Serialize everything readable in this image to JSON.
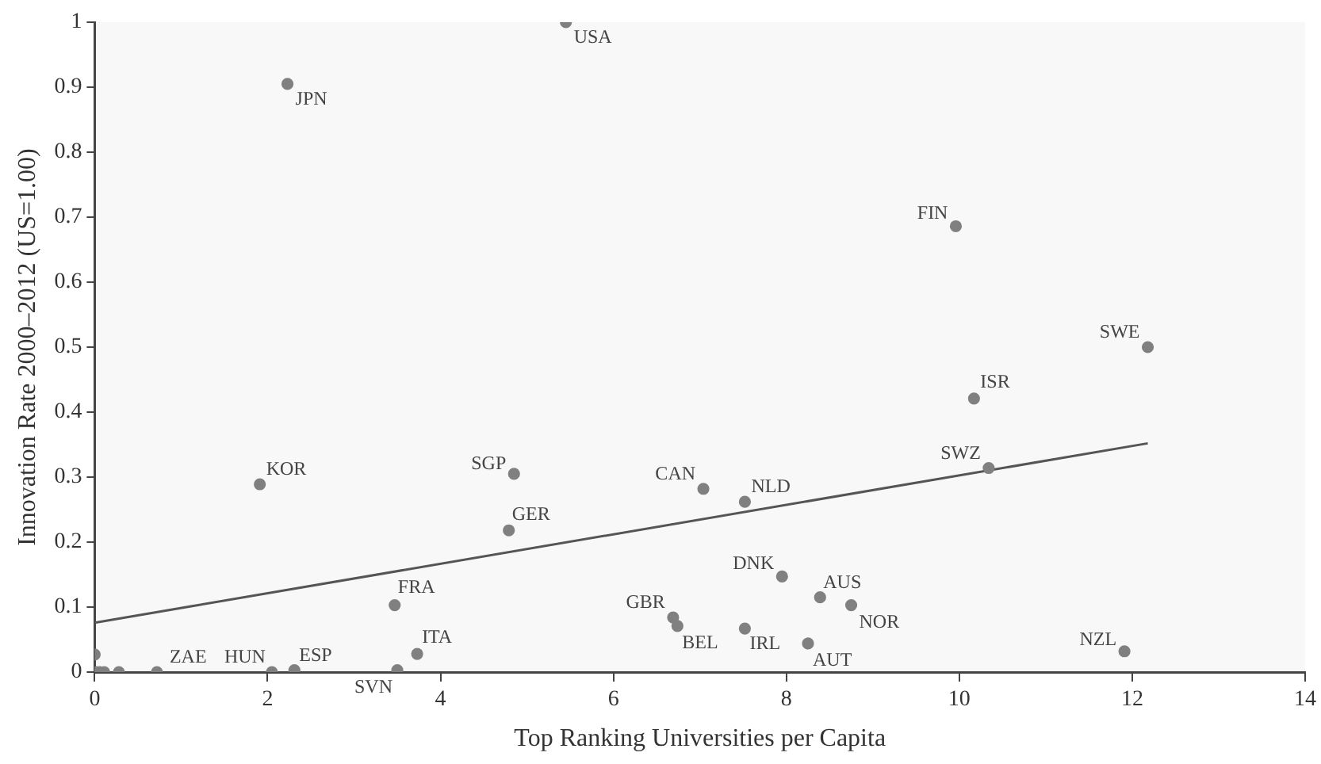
{
  "chart_data": {
    "type": "scatter",
    "xlabel": "Top Ranking Universities per Capita",
    "ylabel": "Innovation Rate 2000–2012 (US=1.00)",
    "xlim": [
      0,
      14
    ],
    "xticks": [
      0,
      2,
      4,
      6,
      8,
      10,
      12,
      14
    ],
    "ylim": [
      0,
      1
    ],
    "yticks": [
      0,
      0.1,
      0.2,
      0.3,
      0.4,
      0.5,
      0.6,
      0.7,
      0.8,
      0.9,
      1
    ],
    "grid": false,
    "legend": false,
    "marker": "circle",
    "series": [
      {
        "color": "#808080",
        "x": [
          5.45,
          2.23,
          9.96,
          12.18,
          10.17,
          10.34,
          1.91,
          4.85,
          4.79,
          7.04,
          7.52,
          3.47,
          7.95,
          8.39,
          8.75,
          6.69,
          6.74,
          7.52,
          8.25,
          11.91,
          3.73,
          3.5,
          2.31,
          2.05,
          0.72,
          0,
          0.02,
          0.06,
          0.11,
          0.28
        ],
        "values": [
          1.0,
          0.905,
          0.686,
          0.5,
          0.421,
          0.314,
          0.289,
          0.305,
          0.218,
          0.282,
          0.262,
          0.103,
          0.147,
          0.115,
          0.103,
          0.084,
          0.071,
          0.067,
          0.044,
          0.032,
          0.028,
          0.003,
          0.003,
          0,
          0,
          0.027,
          0,
          0,
          0,
          0
        ]
      },
      {
        "type": "line",
        "color": "#555555",
        "x": [
          0,
          12.18
        ],
        "values": [
          0.076,
          0.352
        ],
        "marker": "none"
      }
    ],
    "annotations": [
      {
        "text": "USA",
        "x": 5.45,
        "y": 1.0
      },
      {
        "text": "JPN",
        "x": 2.23,
        "y": 0.905
      },
      {
        "text": "FIN",
        "x": 9.96,
        "y": 0.686
      },
      {
        "text": "SWE",
        "x": 12.18,
        "y": 0.5
      },
      {
        "text": "ISR",
        "x": 10.17,
        "y": 0.421
      },
      {
        "text": "SWZ",
        "x": 10.34,
        "y": 0.314
      },
      {
        "text": "KOR",
        "x": 1.91,
        "y": 0.289
      },
      {
        "text": "SGP",
        "x": 4.85,
        "y": 0.305
      },
      {
        "text": "GER",
        "x": 4.79,
        "y": 0.218
      },
      {
        "text": "CAN",
        "x": 7.04,
        "y": 0.282
      },
      {
        "text": "NLD",
        "x": 7.52,
        "y": 0.262
      },
      {
        "text": "FRA",
        "x": 3.47,
        "y": 0.103
      },
      {
        "text": "DNK",
        "x": 7.95,
        "y": 0.147
      },
      {
        "text": "AUS",
        "x": 8.39,
        "y": 0.115
      },
      {
        "text": "NOR",
        "x": 8.75,
        "y": 0.103
      },
      {
        "text": "GBR",
        "x": 6.69,
        "y": 0.084
      },
      {
        "text": "BEL",
        "x": 6.74,
        "y": 0.071
      },
      {
        "text": "IRL",
        "x": 7.52,
        "y": 0.067
      },
      {
        "text": "AUT",
        "x": 8.25,
        "y": 0.044
      },
      {
        "text": "NZL",
        "x": 11.91,
        "y": 0.032
      },
      {
        "text": "ITA",
        "x": 3.73,
        "y": 0.028
      },
      {
        "text": "SVN",
        "x": 3.5,
        "y": 0.003
      },
      {
        "text": "ESP",
        "x": 2.31,
        "y": 0.003
      },
      {
        "text": "HUN",
        "x": 2.05,
        "y": 0
      },
      {
        "text": "ZAE",
        "x": 0.72,
        "y": 0
      }
    ]
  }
}
